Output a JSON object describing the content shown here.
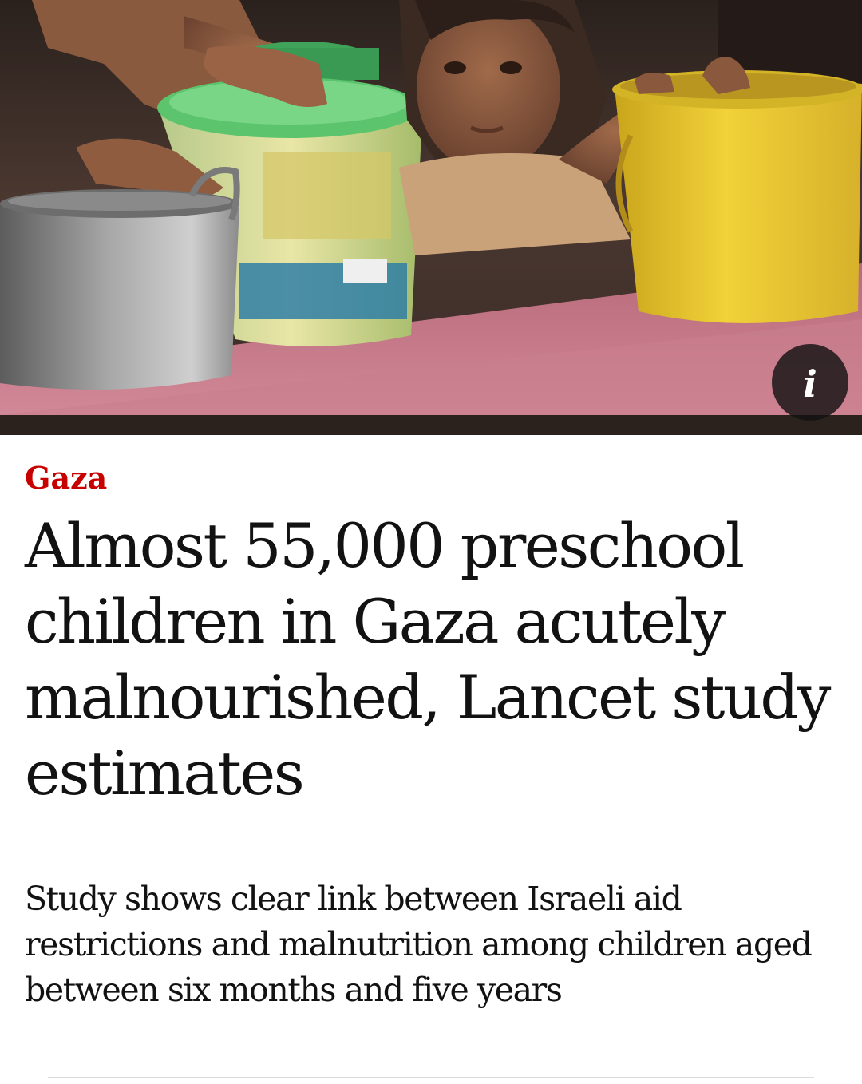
{
  "hero": {
    "info_icon": "info-icon",
    "info_glyph": "i"
  },
  "article": {
    "kicker": "Gaza",
    "headline": "Almost 55,000 preschool children in Gaza acutely malnourished, Lancet study estimates",
    "standfirst": "Study shows clear link between Israeli aid restrictions and malnutrition among children aged between six months and five years"
  },
  "colors": {
    "kicker": "#c70000",
    "text": "#121212",
    "background": "#ffffff"
  }
}
